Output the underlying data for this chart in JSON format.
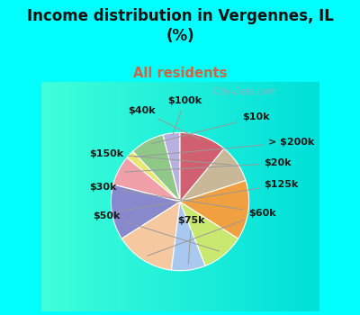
{
  "title": "Income distribution in Vergennes, IL\n(%)",
  "subtitle": "All residents",
  "title_color": "#111111",
  "subtitle_color": "#cc6644",
  "bg_color": "#00ffff",
  "chart_bg_left": "#c8e8d0",
  "chart_bg_right": "#e8f4f4",
  "labels": [
    "$100k",
    "$10k",
    "> $200k",
    "$20k",
    "$125k",
    "$60k",
    "$75k",
    "$50k",
    "$30k",
    "$150k",
    "$40k"
  ],
  "values": [
    4,
    8,
    2,
    7,
    13,
    14,
    8,
    10,
    14,
    9,
    11
  ],
  "colors": [
    "#b8b0e0",
    "#90c888",
    "#e8e870",
    "#f0a0a8",
    "#8888cc",
    "#f5c8a0",
    "#a8c8f0",
    "#c8e870",
    "#f0a040",
    "#c8b898",
    "#d06070"
  ],
  "startangle": 90,
  "label_fontsize": 8,
  "watermark": "  City-Data.com"
}
